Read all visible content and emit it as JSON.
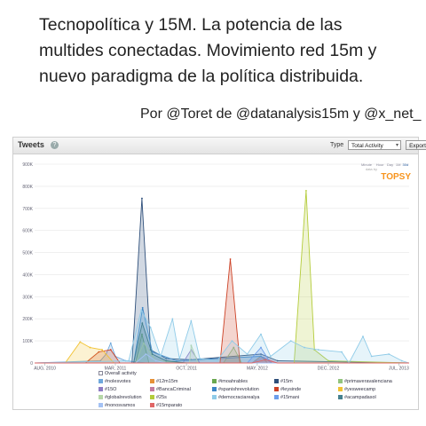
{
  "title_lines": [
    "Tecnopolítica y 15M. La potencia de las",
    "multides conectadas. Movimiento red 15m y",
    "nuevo paradigma de la política distribuida."
  ],
  "byline": "Por @Toret de @datanalysis15m y @x_net_",
  "panel": {
    "title": "Tweets",
    "type_label": "Type",
    "type_value": "Total Activity",
    "export_label": "Export",
    "zoom_options": [
      "Minute",
      "Hour",
      "Day",
      "1M",
      "30d"
    ],
    "brand": "TOPSY",
    "brand_prefix": "data by"
  },
  "colors": {
    "brand": "#f7941d",
    "grid": "#e6e6e6"
  },
  "chart_data": {
    "type": "area",
    "title": "Tweets",
    "ylim": [
      0,
      900000
    ],
    "y_ticks": [
      0,
      100000,
      200000,
      300000,
      400000,
      500000,
      600000,
      700000,
      800000,
      900000
    ],
    "y_tick_labels": [
      "0",
      "100K",
      "200K",
      "300K",
      "400K",
      "500K",
      "600K",
      "700K",
      "800K",
      "900K"
    ],
    "x_range": [
      "2010-07-01",
      "2013-08-01"
    ],
    "x_ticks": [
      {
        "date": "2010-08-01",
        "label": "AUG, 2010"
      },
      {
        "date": "2011-03-01",
        "label": "MAR, 2011"
      },
      {
        "date": "2011-10-01",
        "label": "OCT, 2011"
      },
      {
        "date": "2012-05-01",
        "label": "MAY, 2012"
      },
      {
        "date": "2012-12-01",
        "label": "DEC, 2012"
      },
      {
        "date": "2013-07-01",
        "label": "JUL, 2013"
      }
    ],
    "grid": true,
    "legend_position": "bottom",
    "series": [
      {
        "name": "Overall activity",
        "color": "#4a86c8",
        "active": false,
        "points": []
      },
      {
        "name": "#nolesvotes",
        "color": "#6fa8dc",
        "active": true,
        "points": [
          [
            "2010-07-01",
            0
          ],
          [
            "2011-01-15",
            10000
          ],
          [
            "2011-02-01",
            40000
          ],
          [
            "2011-02-15",
            90000
          ],
          [
            "2011-03-01",
            30000
          ],
          [
            "2011-04-01",
            10000
          ],
          [
            "2011-06-01",
            0
          ]
        ]
      },
      {
        "name": "#12m15m",
        "color": "#e69138",
        "active": true,
        "points": [
          [
            "2010-07-01",
            0
          ],
          [
            "2011-03-15",
            0
          ],
          [
            "2012-04-15",
            0
          ],
          [
            "2012-05-12",
            30000
          ],
          [
            "2012-06-01",
            0
          ],
          [
            "2013-08-01",
            0
          ]
        ]
      },
      {
        "name": "#imoahrables",
        "color": "#6aa84f",
        "active": true,
        "points": [
          [
            "2010-07-01",
            0
          ],
          [
            "2011-05-01",
            0
          ],
          [
            "2011-05-20",
            130000
          ],
          [
            "2011-06-10",
            0
          ],
          [
            "2013-08-01",
            0
          ]
        ]
      },
      {
        "name": "#15m",
        "color": "#2e4f7a",
        "active": true,
        "points": [
          [
            "2010-07-01",
            0
          ],
          [
            "2011-04-20",
            0
          ],
          [
            "2011-05-20",
            745000
          ],
          [
            "2011-06-15",
            60000
          ],
          [
            "2011-08-01",
            20000
          ],
          [
            "2011-10-15",
            15000
          ],
          [
            "2012-05-12",
            40000
          ],
          [
            "2012-07-01",
            10000
          ],
          [
            "2013-08-01",
            0
          ]
        ]
      },
      {
        "name": "#primaveravalenciana",
        "color": "#93c47d",
        "active": true,
        "points": [
          [
            "2010-07-01",
            0
          ],
          [
            "2012-01-20",
            0
          ],
          [
            "2012-02-20",
            70000
          ],
          [
            "2012-03-15",
            0
          ],
          [
            "2013-08-01",
            0
          ]
        ]
      },
      {
        "name": "#15O",
        "color": "#8e7cc3",
        "active": true,
        "points": [
          [
            "2010-07-01",
            0
          ],
          [
            "2011-09-20",
            0
          ],
          [
            "2011-10-15",
            60000
          ],
          [
            "2011-11-10",
            0
          ],
          [
            "2013-08-01",
            0
          ]
        ]
      },
      {
        "name": "#BancaCriminal",
        "color": "#c27ba0",
        "active": true,
        "points": [
          [
            "2010-07-01",
            0
          ],
          [
            "2012-04-15",
            0
          ],
          [
            "2012-05-20",
            25000
          ],
          [
            "2012-07-01",
            0
          ],
          [
            "2013-08-01",
            0
          ]
        ]
      },
      {
        "name": "#spanishrevolution",
        "color": "#3d85c6",
        "active": true,
        "points": [
          [
            "2010-07-01",
            0
          ],
          [
            "2011-04-25",
            0
          ],
          [
            "2011-05-22",
            250000
          ],
          [
            "2011-06-20",
            50000
          ],
          [
            "2011-09-01",
            10000
          ],
          [
            "2012-05-12",
            30000
          ],
          [
            "2012-06-15",
            0
          ],
          [
            "2013-08-01",
            0
          ]
        ]
      },
      {
        "name": "#leysinde",
        "color": "#cc4125",
        "active": true,
        "points": [
          [
            "2010-07-01",
            0
          ],
          [
            "2010-12-01",
            0
          ],
          [
            "2011-01-10",
            50000
          ],
          [
            "2011-02-15",
            60000
          ],
          [
            "2011-03-15",
            0
          ],
          [
            "2012-01-10",
            0
          ],
          [
            "2012-02-10",
            470000
          ],
          [
            "2012-03-10",
            0
          ],
          [
            "2013-08-01",
            0
          ]
        ]
      },
      {
        "name": "#yesweecamp",
        "color": "#f1c232",
        "active": true,
        "points": [
          [
            "2010-07-01",
            0
          ],
          [
            "2010-10-01",
            0
          ],
          [
            "2010-11-15",
            95000
          ],
          [
            "2010-12-15",
            70000
          ],
          [
            "2011-01-20",
            60000
          ],
          [
            "2011-02-25",
            0
          ],
          [
            "2013-08-01",
            0
          ]
        ]
      },
      {
        "name": "#globalrevolution",
        "color": "#b6d7a8",
        "active": true,
        "points": [
          [
            "2010-07-01",
            0
          ],
          [
            "2011-05-01",
            0
          ],
          [
            "2011-05-25",
            90000
          ],
          [
            "2011-07-01",
            10000
          ],
          [
            "2011-10-10",
            0
          ],
          [
            "2011-10-15",
            80000
          ],
          [
            "2011-11-05",
            0
          ],
          [
            "2013-08-01",
            0
          ]
        ]
      },
      {
        "name": "#25s",
        "color": "#b4cc3a",
        "active": true,
        "points": [
          [
            "2010-07-01",
            0
          ],
          [
            "2012-08-20",
            0
          ],
          [
            "2012-09-25",
            780000
          ],
          [
            "2012-10-20",
            60000
          ],
          [
            "2012-12-01",
            10000
          ],
          [
            "2013-08-01",
            0
          ]
        ]
      },
      {
        "name": "#democraciarealya",
        "color": "#8fcbe8",
        "active": true,
        "points": [
          [
            "2010-07-01",
            0
          ],
          [
            "2011-04-10",
            10000
          ],
          [
            "2011-05-18",
            240000
          ],
          [
            "2011-06-15",
            160000
          ],
          [
            "2011-07-15",
            30000
          ],
          [
            "2011-08-20",
            200000
          ],
          [
            "2011-09-10",
            20000
          ],
          [
            "2011-10-15",
            190000
          ],
          [
            "2011-11-10",
            20000
          ],
          [
            "2012-01-01",
            10000
          ],
          [
            "2012-02-15",
            100000
          ],
          [
            "2012-04-01",
            40000
          ],
          [
            "2012-05-12",
            130000
          ],
          [
            "2012-06-10",
            30000
          ],
          [
            "2012-08-10",
            100000
          ],
          [
            "2012-09-20",
            70000
          ],
          [
            "2012-11-01",
            60000
          ],
          [
            "2013-01-10",
            50000
          ],
          [
            "2013-02-01",
            0
          ],
          [
            "2013-03-15",
            120000
          ],
          [
            "2013-04-10",
            30000
          ],
          [
            "2013-06-01",
            40000
          ],
          [
            "2013-07-10",
            10000
          ],
          [
            "2013-08-01",
            0
          ]
        ]
      },
      {
        "name": "#15mani",
        "color": "#6d9eeb",
        "active": true,
        "points": [
          [
            "2010-07-01",
            0
          ],
          [
            "2012-04-01",
            0
          ],
          [
            "2012-05-12",
            70000
          ],
          [
            "2012-06-10",
            0
          ],
          [
            "2013-08-01",
            0
          ]
        ]
      },
      {
        "name": "#acampadasol",
        "color": "#45818e",
        "active": true,
        "points": [
          [
            "2010-07-01",
            0
          ],
          [
            "2011-04-25",
            0
          ],
          [
            "2011-05-21",
            180000
          ],
          [
            "2011-06-20",
            40000
          ],
          [
            "2011-08-01",
            10000
          ],
          [
            "2011-10-01",
            0
          ],
          [
            "2013-08-01",
            0
          ]
        ]
      },
      {
        "name": "#nonosvamos",
        "color": "#a4c2f4",
        "active": true,
        "points": [
          [
            "2010-07-01",
            0
          ],
          [
            "2011-05-01",
            0
          ],
          [
            "2011-06-01",
            40000
          ],
          [
            "2011-07-01",
            10000
          ],
          [
            "2011-08-01",
            0
          ],
          [
            "2013-08-01",
            0
          ]
        ]
      },
      {
        "name": "#15mparato",
        "color": "#e06666",
        "active": true,
        "points": [
          [
            "2010-07-01",
            0
          ],
          [
            "2012-04-15",
            0
          ],
          [
            "2012-05-25",
            15000
          ],
          [
            "2012-07-01",
            0
          ],
          [
            "2013-08-01",
            0
          ]
        ]
      }
    ]
  }
}
